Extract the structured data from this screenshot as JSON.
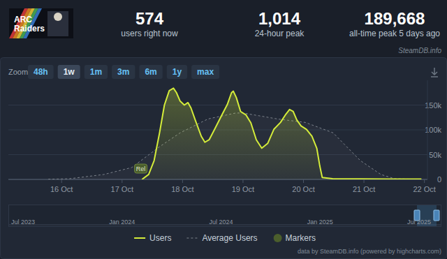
{
  "header": {
    "logo": [
      "ARC",
      "Raiders"
    ],
    "stats": [
      {
        "value": "574",
        "label": "users right now"
      },
      {
        "value": "1,014",
        "label": "24-hour peak"
      },
      {
        "value": "189,668",
        "label": "all-time peak 5 days ago"
      }
    ],
    "source": "SteamDB.info"
  },
  "toolbar": {
    "label": "Zoom",
    "buttons": [
      "48h",
      "1w",
      "1m",
      "3m",
      "6m",
      "1y",
      "max"
    ],
    "active": "1w"
  },
  "navigator": {
    "labels": [
      "Jul 2023",
      "Jan 2024",
      "Jul 2024",
      "Jan 2025",
      "Jul 2025"
    ]
  },
  "credits": "data by SteamDB.info (powered by highcharts.com)",
  "chart_data": {
    "type": "line",
    "xlim": [
      15.12,
      22.05
    ],
    "xticks": [
      {
        "value": 16,
        "label": "16 Oct"
      },
      {
        "value": 17,
        "label": "17 Oct"
      },
      {
        "value": 18,
        "label": "18 Oct"
      },
      {
        "value": 19,
        "label": "19 Oct"
      },
      {
        "value": 20,
        "label": "20 Oct"
      },
      {
        "value": 21,
        "label": "21 Oct"
      },
      {
        "value": 22,
        "label": "22 Oct"
      }
    ],
    "ylim": [
      0,
      200000
    ],
    "yticks": [
      0,
      {
        "value": 50000,
        "label": "50k"
      },
      {
        "value": 100000,
        "label": "100k"
      },
      {
        "value": 150000,
        "label": "150k"
      }
    ],
    "grid": true,
    "legend": "bottom",
    "series": [
      {
        "name": "Users",
        "color": "#d4ec3a",
        "type": "area",
        "line_style": "solid",
        "x": [
          17.33,
          17.44,
          17.53,
          17.62,
          17.7,
          17.78,
          17.85,
          17.9,
          17.96,
          18.03,
          18.09,
          18.14,
          18.21,
          18.31,
          18.37,
          18.44,
          18.53,
          18.65,
          18.74,
          18.81,
          18.84,
          18.89,
          18.96,
          19.05,
          19.13,
          19.22,
          19.31,
          19.41,
          19.51,
          19.62,
          19.7,
          19.77,
          19.83,
          19.89,
          19.96,
          20.05,
          20.14,
          20.22,
          20.27,
          20.31,
          20.48,
          20.94,
          21.4,
          21.95
        ],
        "values": [
          0,
          10000,
          38000,
          94000,
          150000,
          179000,
          184000,
          175000,
          158000,
          150000,
          155000,
          144000,
          120000,
          87000,
          75000,
          80000,
          101000,
          130000,
          151000,
          175000,
          178000,
          165000,
          137000,
          130000,
          114000,
          80000,
          63000,
          73000,
          101000,
          115000,
          130000,
          141000,
          137000,
          120000,
          108000,
          101000,
          87000,
          63000,
          27000,
          4000,
          1400,
          1000,
          800,
          600
        ]
      },
      {
        "name": "Average Users",
        "color": "#7d838c",
        "type": "area",
        "line_style": "dashed",
        "x": [
          15.78,
          16.13,
          16.7,
          17.16,
          17.62,
          17.96,
          18.42,
          18.88,
          19.0,
          19.57,
          20.03,
          20.49,
          20.94,
          21.28,
          21.51,
          21.97
        ],
        "values": [
          500,
          1400,
          10000,
          24000,
          66000,
          94000,
          122000,
          134000,
          134000,
          122000,
          115000,
          94000,
          38000,
          10000,
          1400,
          0
        ]
      }
    ],
    "markers": {
      "name": "Markers",
      "color": "#4b5e2c",
      "points": [
        {
          "x": 17.31,
          "label": "Rel"
        }
      ]
    }
  }
}
